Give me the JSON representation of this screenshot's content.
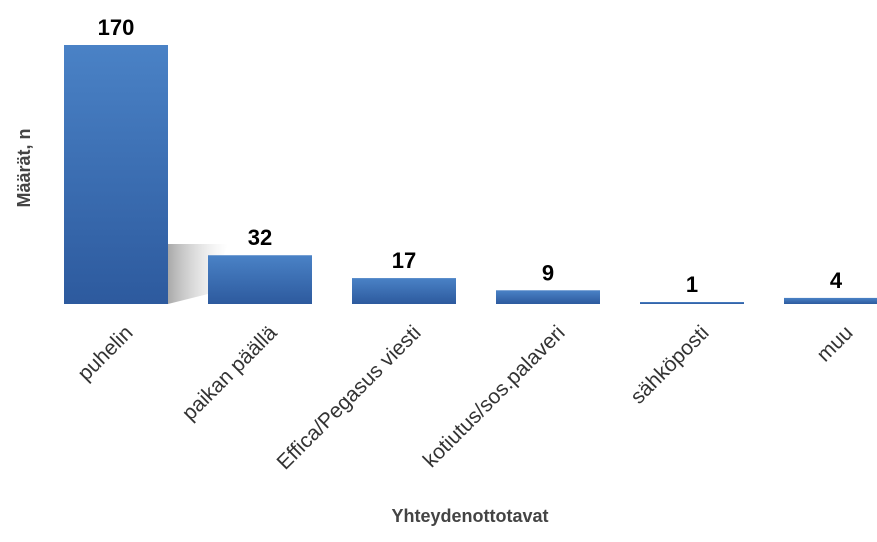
{
  "chart_data": {
    "type": "bar",
    "title": "",
    "xlabel": "Yhteydenottotavat",
    "ylabel": "Määrät, n",
    "categories": [
      "puhelin",
      "paikan päällä",
      "Effica/Pegasus viesti",
      "kotiutus/sos.palaveri",
      "sähköposti",
      "muu"
    ],
    "values": [
      170,
      32,
      17,
      9,
      1,
      4
    ],
    "value_labels": [
      "170",
      "32",
      "17",
      "9",
      "1",
      "4"
    ],
    "ylim": [
      0,
      170
    ],
    "grid": false,
    "legend": "none",
    "bar_color": "#3a6fb3",
    "bar_color_dark": "#2a5596"
  }
}
